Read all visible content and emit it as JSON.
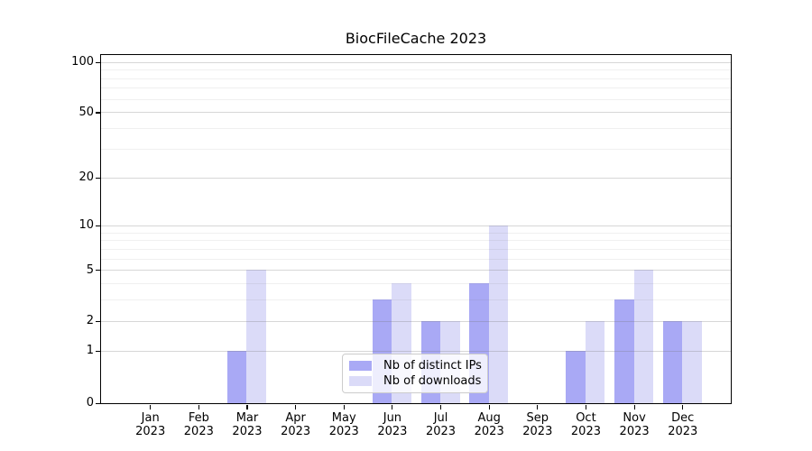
{
  "title": "BiocFileCache 2023",
  "chart_data": {
    "type": "bar",
    "title": "BiocFileCache 2023",
    "categories": [
      "Jan 2023",
      "Feb 2023",
      "Mar 2023",
      "Apr 2023",
      "May 2023",
      "Jun 2023",
      "Jul 2023",
      "Aug 2023",
      "Sep 2023",
      "Oct 2023",
      "Nov 2023",
      "Dec 2023"
    ],
    "months": [
      "Jan",
      "Feb",
      "Mar",
      "Apr",
      "May",
      "Jun",
      "Jul",
      "Aug",
      "Sep",
      "Oct",
      "Nov",
      "Dec"
    ],
    "year_label": "2023",
    "series": [
      {
        "name": "Nb of distinct IPs",
        "color": "#a9a9f5",
        "values": [
          0,
          0,
          1,
          0,
          0,
          3,
          2,
          4,
          0,
          1,
          3,
          2
        ]
      },
      {
        "name": "Nb of downloads",
        "color": "#dbdbf8",
        "values": [
          0,
          0,
          5,
          0,
          0,
          4,
          2,
          10,
          0,
          2,
          5,
          2
        ]
      }
    ],
    "yscale": "log1p",
    "yticks": [
      0,
      1,
      2,
      5,
      10,
      20,
      50,
      100
    ],
    "yticks_minor": [
      3,
      4,
      6,
      7,
      8,
      9,
      30,
      40,
      60,
      70,
      80,
      90
    ],
    "ylim": [
      0,
      110
    ],
    "xlabel": "",
    "ylabel": "",
    "grid": "horizontal",
    "legend_position": "lower center",
    "colors": {
      "background": "#ffffff",
      "axis": "#000000",
      "grid_major": "#d1d1d1",
      "grid_minor": "#e9e9e9",
      "legend_border": "#cccccc"
    }
  }
}
